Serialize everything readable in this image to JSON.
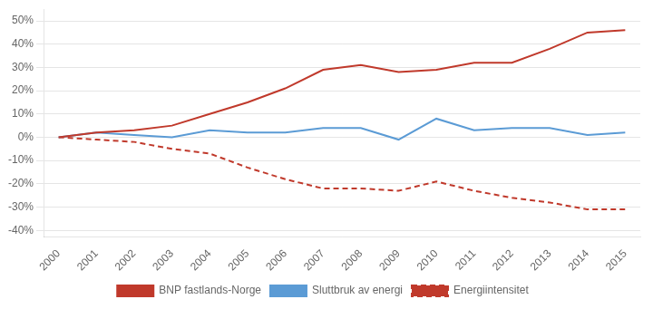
{
  "chart_data": {
    "type": "line",
    "x": [
      2000,
      2001,
      2002,
      2003,
      2004,
      2005,
      2006,
      2007,
      2008,
      2009,
      2010,
      2011,
      2012,
      2013,
      2014,
      2015
    ],
    "xlim": [
      1999.6,
      2015.4
    ],
    "xticks": [
      2000,
      2001,
      2002,
      2003,
      2004,
      2005,
      2006,
      2007,
      2008,
      2009,
      2010,
      2011,
      2012,
      2013,
      2014,
      2015
    ],
    "series": [
      {
        "name": "BNP fastlands-Norge",
        "color": "#c0392b",
        "line_style": "solid",
        "values": [
          0,
          2,
          3,
          5,
          10,
          15,
          21,
          29,
          31,
          28,
          29,
          32,
          32,
          38,
          45,
          46
        ]
      },
      {
        "name": "Sluttbruk av energi",
        "color": "#5b9bd5",
        "line_style": "solid",
        "values": [
          0,
          2,
          1,
          0,
          3,
          2,
          2,
          4,
          4,
          -1,
          8,
          3,
          4,
          4,
          1,
          2
        ]
      },
      {
        "name": "Energiintensitet",
        "color": "#c0392b",
        "line_style": "dashed",
        "values": [
          0,
          -1,
          -2,
          -5,
          -7,
          -13,
          -18,
          -22,
          -22,
          -23,
          -19,
          -23,
          -26,
          -28,
          -31,
          -31
        ]
      }
    ],
    "ylim": [
      -43,
      55
    ],
    "yticks": [
      {
        "value": -40,
        "label": "-40%"
      },
      {
        "value": -30,
        "label": "-30%"
      },
      {
        "value": -20,
        "label": "-20%"
      },
      {
        "value": -10,
        "label": "-10%"
      },
      {
        "value": 0,
        "label": "0%"
      },
      {
        "value": 10,
        "label": "10%"
      },
      {
        "value": 20,
        "label": "20%"
      },
      {
        "value": 30,
        "label": "30%"
      },
      {
        "value": 40,
        "label": "40%"
      },
      {
        "value": 50,
        "label": "50%"
      }
    ],
    "grid": true,
    "legend": "bottom"
  }
}
